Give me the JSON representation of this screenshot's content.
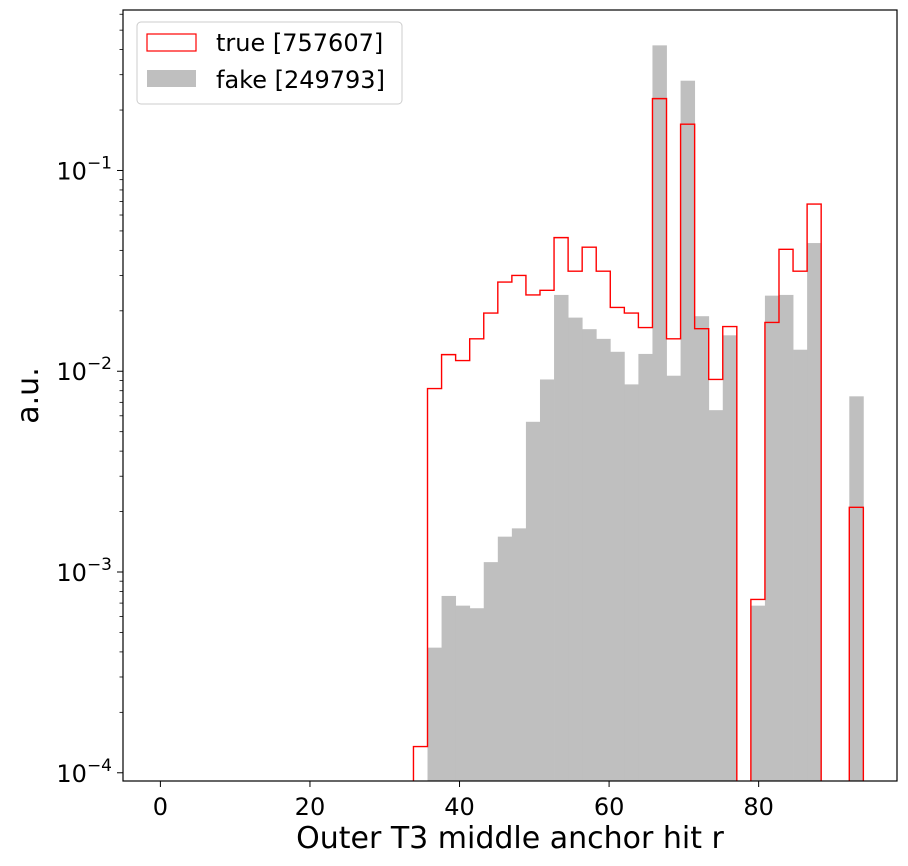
{
  "chart_data": {
    "type": "histogram",
    "xlabel": "Outer T3 middle anchor hit r",
    "ylabel": "a.u.",
    "xlim": [
      -5,
      98.5
    ],
    "ylim": [
      9.1e-05,
      0.63
    ],
    "yscale": "log",
    "xticks": [
      0,
      20,
      40,
      60,
      80
    ],
    "yticks": [
      {
        "value": 0.0001,
        "base": "10",
        "exp": "−4"
      },
      {
        "value": 0.001,
        "base": "10",
        "exp": "−3"
      },
      {
        "value": 0.01,
        "base": "10",
        "exp": "−2"
      },
      {
        "value": 0.1,
        "base": "10",
        "exp": "−1"
      }
    ],
    "legend_position": "top-left",
    "bin_edges": [
      0,
      1.88,
      3.76,
      5.64,
      7.52,
      9.4,
      11.28,
      13.16,
      15.04,
      16.92,
      18.8,
      20.68,
      22.56,
      24.44,
      26.32,
      28.2,
      30.08,
      31.96,
      33.84,
      35.72,
      37.6,
      39.48,
      41.36,
      43.24,
      45.12,
      47.0,
      48.88,
      50.76,
      52.64,
      54.52,
      56.4,
      58.28,
      60.16,
      62.04,
      63.92,
      65.8,
      67.68,
      69.56,
      71.44,
      73.32,
      75.2,
      77.08,
      78.96,
      80.84,
      82.72,
      84.6,
      86.48,
      88.36,
      90.24,
      92.12,
      94.0
    ],
    "series": [
      {
        "name": "true [757607]",
        "style": "step",
        "color": "#ff0000",
        "values": [
          0,
          0,
          0,
          0,
          0,
          0,
          0,
          0,
          0,
          0,
          0,
          0,
          0,
          0,
          0,
          0,
          0,
          0,
          0.000135,
          0.0082,
          0.0121,
          0.0113,
          0.0145,
          0.0195,
          0.0278,
          0.03,
          0.024,
          0.0253,
          0.0463,
          0.0315,
          0.0415,
          0.0315,
          0.0208,
          0.0195,
          0.0165,
          0.228,
          0.0145,
          0.17,
          0.0163,
          0.0091,
          0.0167,
          0,
          0.00073,
          0.0175,
          0.0405,
          0.0315,
          0.068,
          0,
          0,
          0.0021
        ]
      },
      {
        "name": "fake [249793]",
        "style": "filled",
        "color": "#bfbfbf",
        "values": [
          0,
          0,
          0,
          0,
          0,
          0,
          0,
          0,
          0,
          0,
          0,
          0,
          0,
          0,
          0,
          0,
          0,
          0,
          0,
          0.00042,
          0.00076,
          0.00068,
          0.00066,
          0.00112,
          0.0015,
          0.00165,
          0.0056,
          0.0091,
          0.024,
          0.0185,
          0.0162,
          0.0145,
          0.0125,
          0.0086,
          0.0122,
          0.42,
          0.0095,
          0.28,
          0.0188,
          0.0064,
          0.0151,
          0,
          0.00068,
          0.0238,
          0.024,
          0.0128,
          0.0435,
          0,
          0,
          0.0075
        ]
      }
    ]
  }
}
